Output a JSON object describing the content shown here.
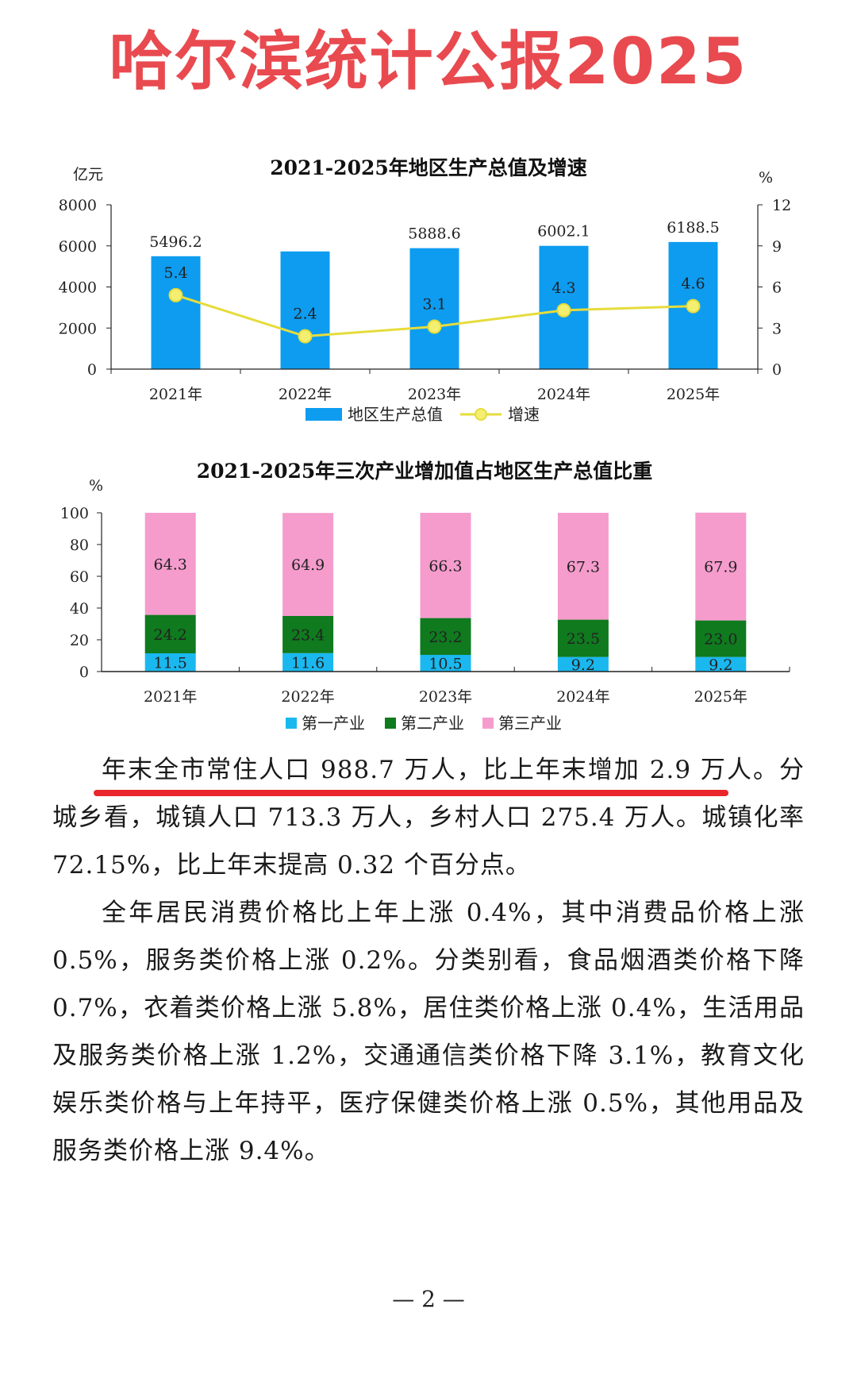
{
  "headline": {
    "text": "哈尔滨统计公报2025",
    "color": "#e84a4f"
  },
  "chart_data": [
    {
      "type": "bar+line",
      "title": "2021-2025年地区生产总值及增速",
      "ylabel_left": "亿元",
      "ylabel_right": "%",
      "categories": [
        "2021年",
        "2022年",
        "2023年",
        "2024年",
        "2025年"
      ],
      "series": [
        {
          "name": "地区生产总值",
          "type": "bar",
          "color": "#0d9cf0",
          "values": [
            5496.2,
            5730,
            5888.6,
            6002.1,
            6188.5
          ],
          "labels": [
            "5496.2",
            "",
            "5888.6",
            "6002.1",
            "6188.5"
          ]
        },
        {
          "name": "增速",
          "type": "line",
          "axis": "right",
          "color": "#e6dc3c",
          "values": [
            5.4,
            2.4,
            3.1,
            4.3,
            4.6
          ],
          "labels": [
            "5.4",
            "2.4",
            "3.1",
            "4.3",
            "4.6"
          ]
        }
      ],
      "ylim_left": [
        0,
        8000
      ],
      "yticks_left": [
        "0",
        "2000",
        "4000",
        "6000",
        "8000"
      ],
      "ylim_right": [
        0,
        12
      ],
      "yticks_right": [
        "0",
        "3",
        "6",
        "9",
        "12"
      ],
      "legend": "bottom-center"
    },
    {
      "type": "stacked-bar",
      "title": "2021-2025年三次产业增加值占地区生产总值比重",
      "ylabel": "%",
      "categories": [
        "2021年",
        "2022年",
        "2023年",
        "2024年",
        "2025年"
      ],
      "series": [
        {
          "name": "第一产业",
          "color": "#1ab8ee",
          "values": [
            11.5,
            11.6,
            10.5,
            9.2,
            9.2
          ],
          "labels": [
            "11.5",
            "11.6",
            "10.5",
            "9.2",
            "9.2"
          ]
        },
        {
          "name": "第二产业",
          "color": "#0f7a1e",
          "values": [
            24.2,
            23.4,
            23.2,
            23.5,
            23.0
          ],
          "labels": [
            "24.2",
            "23.4",
            "23.2",
            "23.5",
            "23.0"
          ]
        },
        {
          "name": "第三产业",
          "color": "#f59ccd",
          "values": [
            64.3,
            64.9,
            66.3,
            67.3,
            67.9
          ],
          "labels": [
            "64.3",
            "64.9",
            "66.3",
            "67.3",
            "67.9"
          ]
        }
      ],
      "ylim": [
        0,
        100
      ],
      "yticks": [
        "0",
        "20",
        "40",
        "60",
        "80",
        "100"
      ],
      "legend": "bottom-center"
    }
  ],
  "paragraphs": {
    "p1_highlight": "年末全市常住人口 988.7 万人，比上年末增加 2.9 万人。",
    "p1_rest": "分城乡看，城镇人口 713.3 万人，乡村人口 275.4 万人。城镇化率 72.15%，比上年末提高 0.32 个百分点。",
    "p2": "全年居民消费价格比上年上涨 0.4%，其中消费品价格上涨 0.5%，服务类价格上涨 0.2%。分类别看，食品烟酒类价格下降 0.7%，衣着类价格上涨 5.8%，居住类价格上涨 0.4%，生活用品及服务类价格上涨 1.2%，交通通信类价格下降 3.1%，教育文化娱乐类价格与上年持平，医疗保健类价格上涨 0.5%，其他用品及服务类价格上涨 9.4%。"
  },
  "underline_color": "#e8262c",
  "page_number": "— 2 —"
}
